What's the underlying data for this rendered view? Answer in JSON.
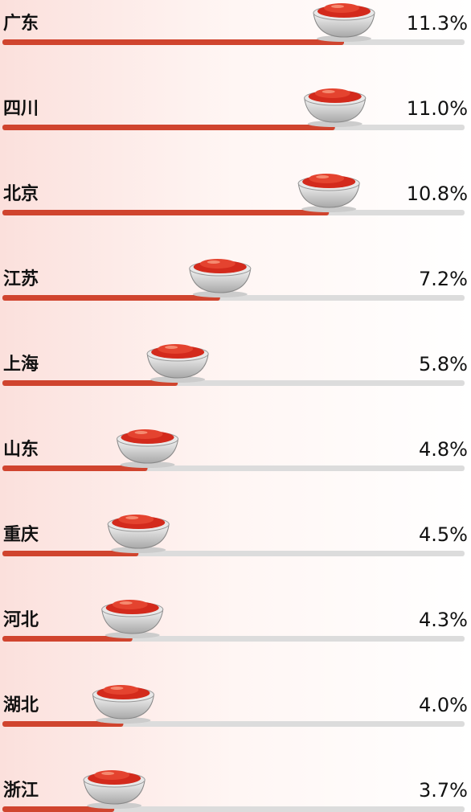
{
  "chart_data": {
    "type": "bar",
    "orientation": "horizontal",
    "categories": [
      "广东",
      "四川",
      "北京",
      "江苏",
      "上海",
      "山东",
      "重庆",
      "河北",
      "湖北",
      "浙江"
    ],
    "values": [
      11.3,
      11.0,
      10.8,
      7.2,
      5.8,
      4.8,
      4.5,
      4.3,
      4.0,
      3.7
    ],
    "value_labels": [
      "11.3%",
      "11.0%",
      "10.8%",
      "7.2%",
      "5.8%",
      "4.8%",
      "4.5%",
      "4.3%",
      "4.0%",
      "3.7%"
    ],
    "color": "#d0442e",
    "track_color": "#dcdcdc"
  }
}
